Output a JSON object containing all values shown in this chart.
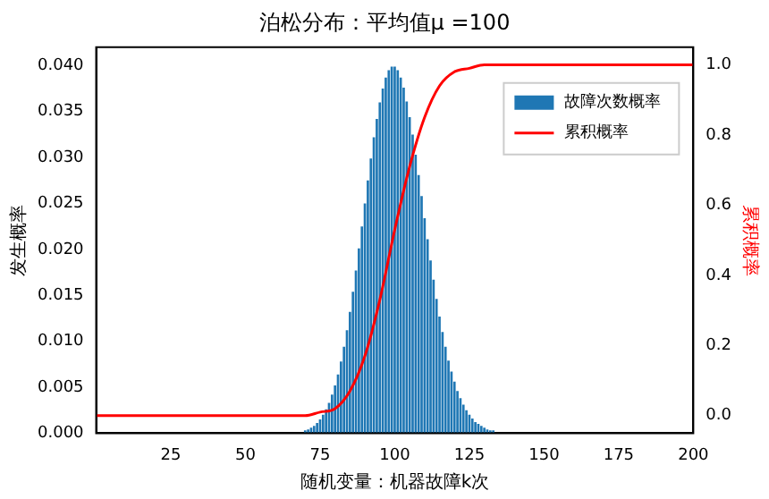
{
  "chart_data": {
    "type": "bar",
    "title": "泊松分布：平均值μ =100",
    "xlabel": "随机变量：机器故障k次",
    "ylabel": "发生概率",
    "y2label": "累积概率",
    "x": [
      70,
      71,
      72,
      73,
      74,
      75,
      76,
      77,
      78,
      79,
      80,
      81,
      82,
      83,
      84,
      85,
      86,
      87,
      88,
      89,
      90,
      91,
      92,
      93,
      94,
      95,
      96,
      97,
      98,
      99,
      100,
      101,
      102,
      103,
      104,
      105,
      106,
      107,
      108,
      109,
      110,
      111,
      112,
      113,
      114,
      115,
      116,
      117,
      118,
      119,
      120,
      121,
      122,
      123,
      124,
      125,
      126,
      127,
      128,
      129,
      130,
      131,
      132,
      133
    ],
    "series": [
      {
        "name": "故障次数概率",
        "color": "#1f77b4",
        "values": [
          0.0003,
          0.0004,
          0.0006,
          0.0008,
          0.0011,
          0.0015,
          0.002,
          0.0026,
          0.0033,
          0.0042,
          0.0052,
          0.0064,
          0.0078,
          0.0094,
          0.0112,
          0.0132,
          0.0154,
          0.0177,
          0.0201,
          0.0225,
          0.025,
          0.0275,
          0.0299,
          0.0322,
          0.0342,
          0.036,
          0.0375,
          0.0387,
          0.0395,
          0.0399,
          0.0399,
          0.0395,
          0.0387,
          0.0376,
          0.0361,
          0.0344,
          0.0325,
          0.0303,
          0.0281,
          0.0258,
          0.0234,
          0.0211,
          0.0188,
          0.0167,
          0.0146,
          0.0127,
          0.011,
          0.0094,
          0.0079,
          0.0067,
          0.0056,
          0.0046,
          0.0038,
          0.0031,
          0.0025,
          0.002,
          0.0016,
          0.0012,
          0.001,
          0.0008,
          0.0006,
          0.0004,
          0.0003,
          0.0003
        ]
      },
      {
        "name": "累积概率",
        "type": "line",
        "axis": "y2",
        "color": "#ff0000",
        "x": [
          0,
          60,
          65,
          70,
          75,
          80,
          85,
          90,
          95,
          100,
          105,
          110,
          115,
          120,
          125,
          130,
          135,
          140,
          200
        ],
        "values": [
          0,
          0,
          0,
          0,
          0.01,
          0.02,
          0.07,
          0.17,
          0.33,
          0.53,
          0.71,
          0.85,
          0.94,
          0.98,
          0.99,
          1,
          1,
          1,
          1
        ]
      }
    ],
    "xlim": [
      0,
      200
    ],
    "xticks": [
      25,
      50,
      75,
      100,
      125,
      150,
      175,
      200
    ],
    "ylim": [
      0,
      0.042
    ],
    "yticks": [
      {
        "value": 0,
        "label": "0.000"
      },
      {
        "value": 0.005,
        "label": "0.005"
      },
      {
        "value": 0.01,
        "label": "0.010"
      },
      {
        "value": 0.015,
        "label": "0.015"
      },
      {
        "value": 0.02,
        "label": "0.020"
      },
      {
        "value": 0.025,
        "label": "0.025"
      },
      {
        "value": 0.03,
        "label": "0.030"
      },
      {
        "value": 0.035,
        "label": "0.035"
      },
      {
        "value": 0.04,
        "label": "0.040"
      }
    ],
    "y2lim": [
      -0.05,
      1.05
    ],
    "y2ticks": [
      {
        "value": 0,
        "label": "0.0"
      },
      {
        "value": 0.2,
        "label": "0.2"
      },
      {
        "value": 0.4,
        "label": "0.4"
      },
      {
        "value": 0.6,
        "label": "0.6"
      },
      {
        "value": 0.8,
        "label": "0.8"
      },
      {
        "value": 1,
        "label": "1.0"
      }
    ],
    "legend": "top right",
    "marker": "none",
    "grid": false
  }
}
